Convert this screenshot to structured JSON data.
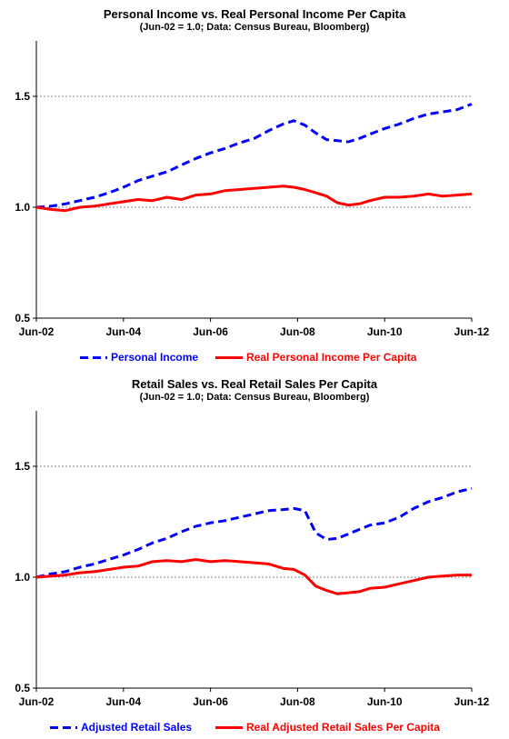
{
  "chart_data": [
    {
      "type": "line",
      "title": "Personal Income vs. Real Personal Income Per Capita",
      "subtitle": "(Jun-02 = 1.0; Data: Census Bureau, Bloomberg)",
      "x_tick_labels": [
        "Jun-02",
        "Jun-04",
        "Jun-06",
        "Jun-08",
        "Jun-10",
        "Jun-12"
      ],
      "y_tick_labels": [
        "0.5",
        "1.0",
        "1.5"
      ],
      "ylim": [
        0.5,
        1.75
      ],
      "grid": "horizontal dotted at 1.0 and 1.5",
      "legend": "bottom",
      "series": [
        {
          "name": "Personal Income",
          "color": "#0000ff",
          "style": "dashed",
          "x": [
            "Jun-02",
            "Oct-02",
            "Feb-03",
            "Jun-03",
            "Oct-03",
            "Feb-04",
            "Jun-04",
            "Oct-04",
            "Feb-05",
            "Jun-05",
            "Oct-05",
            "Feb-06",
            "Jun-06",
            "Oct-06",
            "Feb-07",
            "Jun-07",
            "Oct-07",
            "Feb-08",
            "May-08",
            "Aug-08",
            "Nov-08",
            "Feb-09",
            "May-09",
            "Aug-09",
            "Nov-09",
            "Feb-10",
            "Jun-10",
            "Oct-10",
            "Feb-11",
            "Jun-11",
            "Oct-11",
            "Feb-12",
            "Jun-12"
          ],
          "values": [
            1.0,
            1.005,
            1.015,
            1.03,
            1.045,
            1.065,
            1.09,
            1.12,
            1.14,
            1.16,
            1.19,
            1.22,
            1.245,
            1.265,
            1.29,
            1.31,
            1.345,
            1.375,
            1.39,
            1.37,
            1.335,
            1.305,
            1.3,
            1.295,
            1.31,
            1.33,
            1.355,
            1.375,
            1.4,
            1.42,
            1.43,
            1.44,
            1.465
          ]
        },
        {
          "name": "Real Personal Income Per Capita",
          "color": "#ff0000",
          "style": "solid",
          "x": [
            "Jun-02",
            "Oct-02",
            "Feb-03",
            "Jun-03",
            "Oct-03",
            "Feb-04",
            "Jun-04",
            "Oct-04",
            "Feb-05",
            "Jun-05",
            "Oct-05",
            "Feb-06",
            "Jun-06",
            "Oct-06",
            "Feb-07",
            "Jun-07",
            "Oct-07",
            "Feb-08",
            "May-08",
            "Aug-08",
            "Nov-08",
            "Feb-09",
            "May-09",
            "Aug-09",
            "Nov-09",
            "Feb-10",
            "Jun-10",
            "Oct-10",
            "Feb-11",
            "Jun-11",
            "Oct-11",
            "Feb-12",
            "Jun-12"
          ],
          "values": [
            1.0,
            0.99,
            0.985,
            1.0,
            1.005,
            1.015,
            1.025,
            1.035,
            1.03,
            1.045,
            1.035,
            1.055,
            1.06,
            1.075,
            1.08,
            1.085,
            1.09,
            1.095,
            1.09,
            1.08,
            1.065,
            1.05,
            1.02,
            1.01,
            1.015,
            1.03,
            1.045,
            1.045,
            1.05,
            1.06,
            1.05,
            1.055,
            1.06
          ]
        }
      ]
    },
    {
      "type": "line",
      "title": "Retail Sales vs. Real Retail Sales Per Capita",
      "subtitle": "(Jun-02 = 1.0; Data: Census Bureau, Bloomberg)",
      "x_tick_labels": [
        "Jun-02",
        "Jun-04",
        "Jun-06",
        "Jun-08",
        "Jun-10",
        "Jun-12"
      ],
      "y_tick_labels": [
        "0.5",
        "1.0",
        "1.5"
      ],
      "ylim": [
        0.5,
        1.75
      ],
      "grid": "horizontal dotted at 1.0 and 1.5",
      "legend": "bottom",
      "series": [
        {
          "name": "Adjusted Retail Sales",
          "color": "#0000ff",
          "style": "dashed",
          "x": [
            "Jun-02",
            "Oct-02",
            "Feb-03",
            "Jun-03",
            "Oct-03",
            "Feb-04",
            "Jun-04",
            "Oct-04",
            "Feb-05",
            "Jun-05",
            "Oct-05",
            "Feb-06",
            "Jun-06",
            "Oct-06",
            "Feb-07",
            "Jun-07",
            "Oct-07",
            "Feb-08",
            "May-08",
            "Aug-08",
            "Nov-08",
            "Feb-09",
            "May-09",
            "Aug-09",
            "Nov-09",
            "Feb-10",
            "Jun-10",
            "Oct-10",
            "Feb-11",
            "Jun-11",
            "Oct-11",
            "Feb-12",
            "Jun-12"
          ],
          "values": [
            1.0,
            1.015,
            1.025,
            1.045,
            1.06,
            1.08,
            1.1,
            1.125,
            1.155,
            1.175,
            1.205,
            1.23,
            1.245,
            1.255,
            1.27,
            1.285,
            1.3,
            1.305,
            1.31,
            1.3,
            1.2,
            1.17,
            1.175,
            1.195,
            1.215,
            1.235,
            1.245,
            1.27,
            1.31,
            1.34,
            1.36,
            1.385,
            1.4
          ]
        },
        {
          "name": "Real Adjusted Retail Sales Per Capita",
          "color": "#ff0000",
          "style": "solid",
          "x": [
            "Jun-02",
            "Oct-02",
            "Feb-03",
            "Jun-03",
            "Oct-03",
            "Feb-04",
            "Jun-04",
            "Oct-04",
            "Feb-05",
            "Jun-05",
            "Oct-05",
            "Feb-06",
            "Jun-06",
            "Oct-06",
            "Feb-07",
            "Jun-07",
            "Oct-07",
            "Feb-08",
            "May-08",
            "Aug-08",
            "Nov-08",
            "Feb-09",
            "May-09",
            "Aug-09",
            "Nov-09",
            "Feb-10",
            "Jun-10",
            "Oct-10",
            "Feb-11",
            "Jun-11",
            "Oct-11",
            "Feb-12",
            "Jun-12"
          ],
          "values": [
            1.0,
            1.005,
            1.01,
            1.02,
            1.025,
            1.035,
            1.045,
            1.05,
            1.07,
            1.075,
            1.07,
            1.08,
            1.07,
            1.075,
            1.07,
            1.065,
            1.06,
            1.04,
            1.035,
            1.01,
            0.96,
            0.94,
            0.925,
            0.93,
            0.935,
            0.95,
            0.955,
            0.97,
            0.985,
            1.0,
            1.005,
            1.01,
            1.01
          ]
        }
      ]
    }
  ]
}
